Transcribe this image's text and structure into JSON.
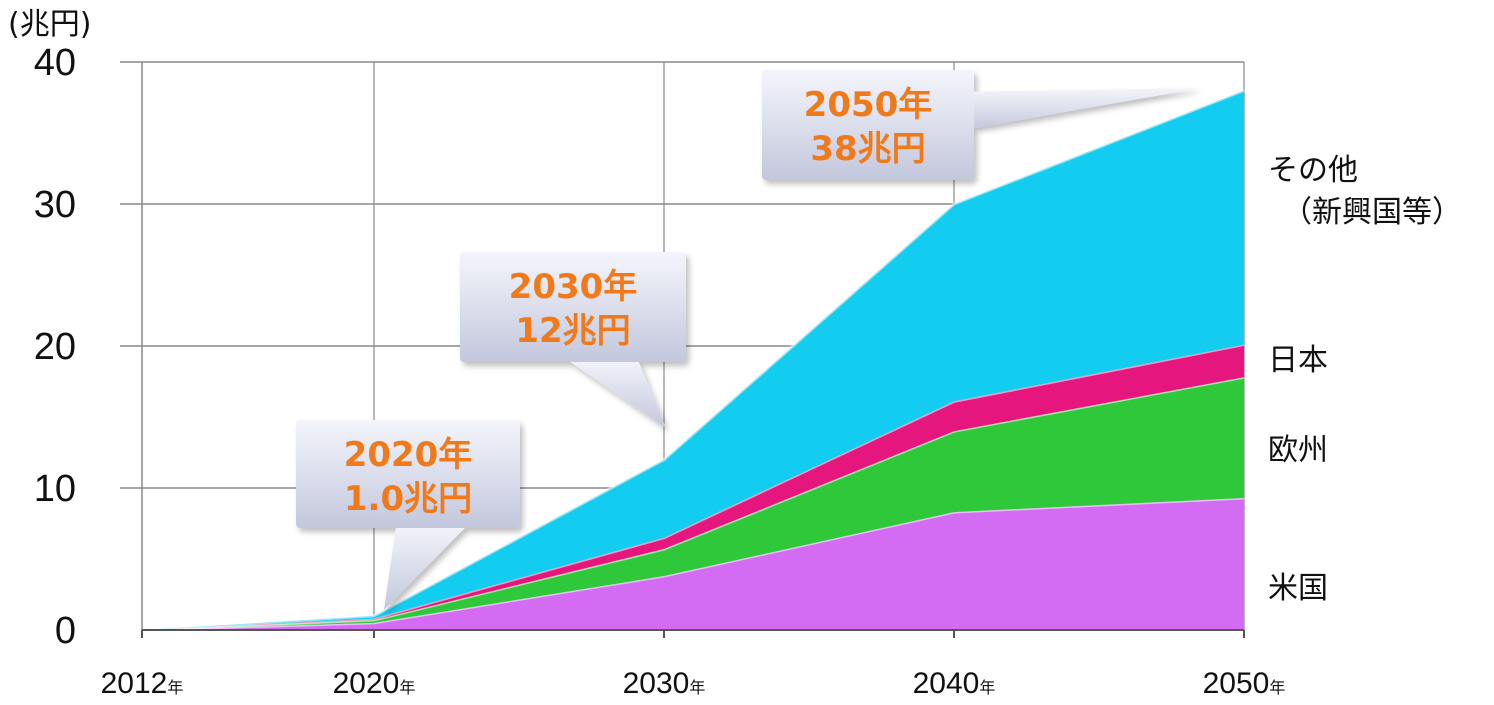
{
  "chart_data": {
    "type": "area",
    "stacked": true,
    "unit_label": "(兆円)",
    "x": [
      2012,
      2020,
      2030,
      2040,
      2050
    ],
    "x_tick_labels": [
      "2012",
      "2020",
      "2030",
      "2040",
      "2050"
    ],
    "x_tick_suffix": "年",
    "ylim": [
      0,
      40
    ],
    "y_ticks": [
      0,
      10,
      20,
      30,
      40
    ],
    "grid": true,
    "legend_placement": "right",
    "series": [
      {
        "name": "米国",
        "color": "#d36cf2",
        "values": [
          0,
          0.5,
          3.8,
          8.3,
          9.3
        ]
      },
      {
        "name": "欧州",
        "color": "#2fc83a",
        "values": [
          0,
          0.2,
          1.9,
          5.7,
          8.5
        ]
      },
      {
        "name": "日本",
        "color": "#e5177f",
        "values": [
          0,
          0.1,
          0.8,
          2.1,
          2.3
        ]
      },
      {
        "name": "その他\n（新興国等）",
        "color": "#12cdf0",
        "values": [
          0,
          0.2,
          5.5,
          13.9,
          17.9
        ]
      }
    ],
    "annotations": [
      {
        "line1": "2020年",
        "line2": "1.0兆円",
        "x": 2020,
        "y": 1.0
      },
      {
        "line1": "2030年",
        "line2": "12兆円",
        "x": 2030,
        "y": 12
      },
      {
        "line1": "2050年",
        "line2": "38兆円",
        "x": 2050,
        "y": 38
      }
    ]
  }
}
